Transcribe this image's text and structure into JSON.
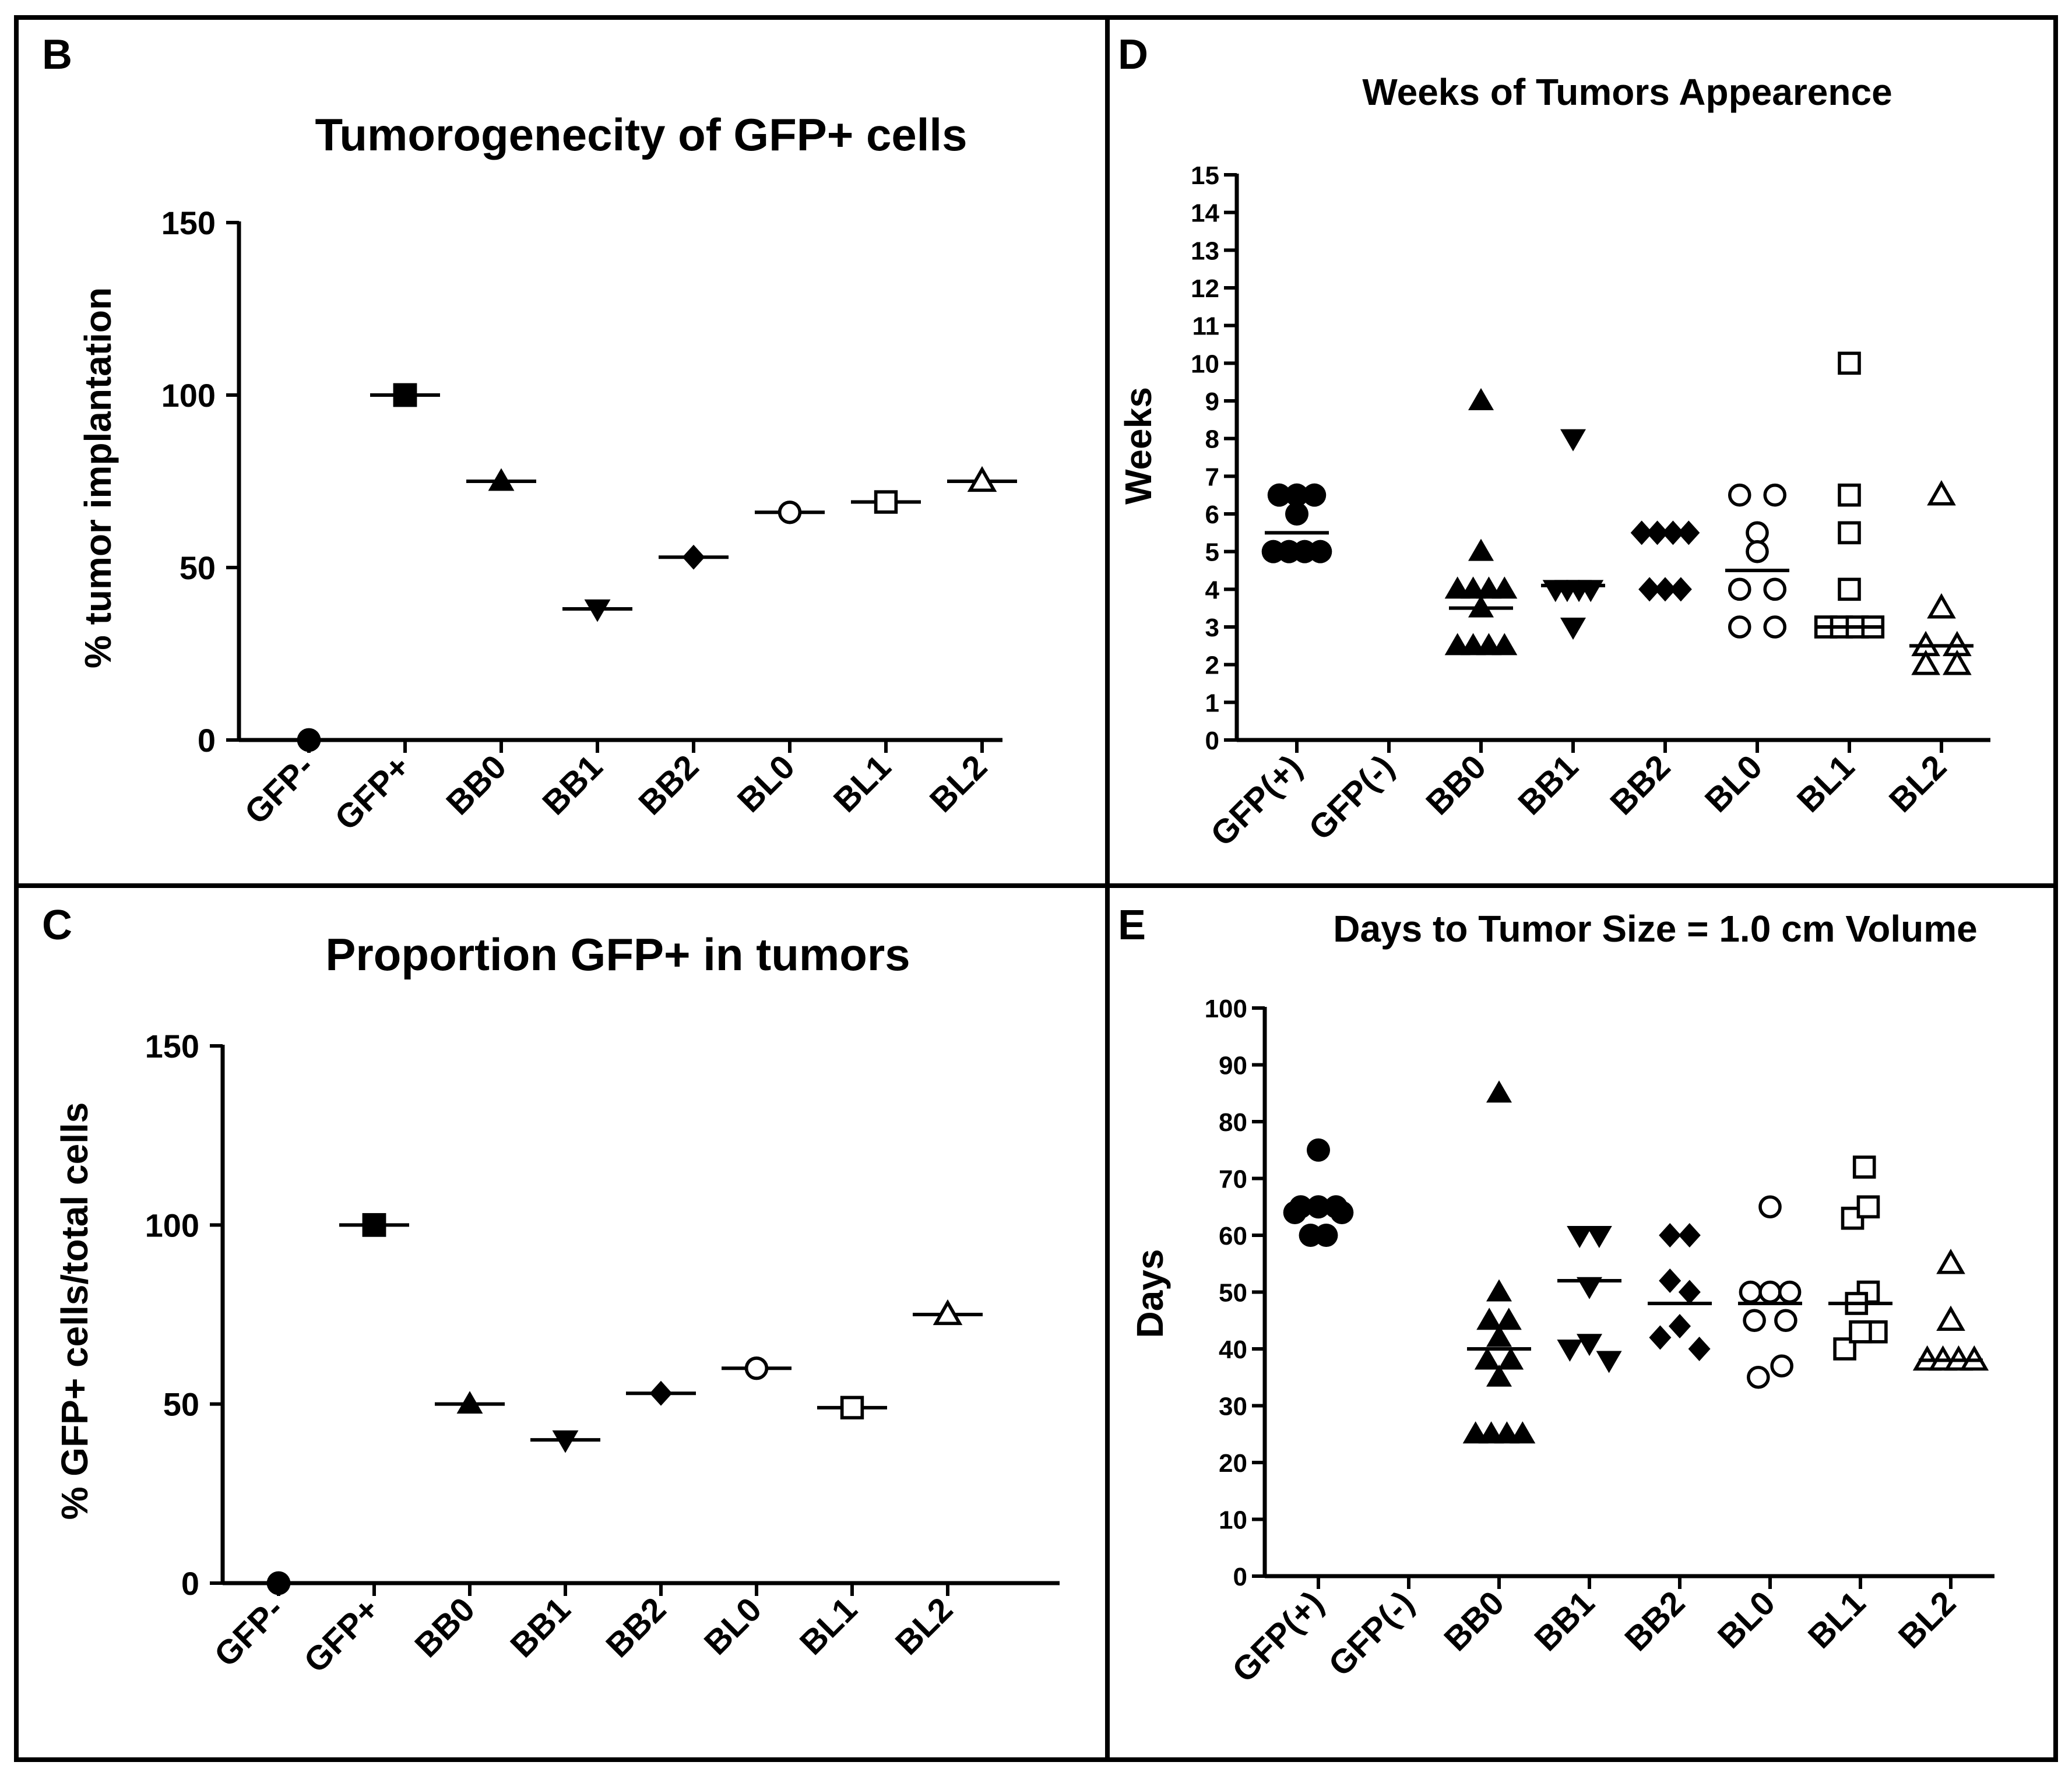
{
  "panels": {
    "B": {
      "letter": "B"
    },
    "C": {
      "letter": "C"
    },
    "D": {
      "letter": "D"
    },
    "E": {
      "letter": "E"
    }
  },
  "chart_data": [
    {
      "id": "B",
      "type": "scatter",
      "title": "Tumorogenecity of GFP+ cells",
      "xlabel": "",
      "ylabel": "% tumor implantation",
      "ylim": [
        0,
        150
      ],
      "yticks": [
        0,
        50,
        100,
        150
      ],
      "categories": [
        "GFP-",
        "GFP+",
        "BB0",
        "BB1",
        "BB2",
        "BL0",
        "BL1",
        "BL2"
      ],
      "markers": [
        "circle",
        "square",
        "triangle",
        "triangle-down",
        "diamond",
        "circle-open",
        "square-open",
        "triangle-open"
      ],
      "values": [
        0,
        100,
        75,
        38,
        53,
        66,
        69,
        75
      ]
    },
    {
      "id": "C",
      "type": "scatter",
      "title": "Proportion GFP+ in tumors",
      "xlabel": "",
      "ylabel": "% GFP+ cells/total cells",
      "ylim": [
        0,
        150
      ],
      "yticks": [
        0,
        50,
        100,
        150
      ],
      "categories": [
        "GFP-",
        "GFP+",
        "BB0",
        "BB1",
        "BB2",
        "BL0",
        "BL1",
        "BL2"
      ],
      "markers": [
        "circle",
        "square",
        "triangle",
        "triangle-down",
        "diamond",
        "circle-open",
        "square-open",
        "triangle-open"
      ],
      "values": [
        0,
        100,
        50,
        40,
        53,
        60,
        49,
        75
      ]
    },
    {
      "id": "D",
      "type": "scatter",
      "title": "Weeks of Tumors Appearence",
      "xlabel": "",
      "ylabel": "Weeks",
      "ylim": [
        0,
        15
      ],
      "yticks": [
        0,
        1,
        2,
        3,
        4,
        5,
        6,
        7,
        8,
        9,
        10,
        11,
        12,
        13,
        14,
        15
      ],
      "categories": [
        "GFP(+)",
        "GFP(-)",
        "BB0",
        "BB1",
        "BB2",
        "BL0",
        "BL1",
        "BL2"
      ],
      "markers": [
        "circle",
        "none",
        "triangle",
        "triangle-down",
        "diamond",
        "circle-open",
        "square-open",
        "triangle-open"
      ],
      "series": [
        {
          "name": "GFP(+)",
          "points": [
            [
              -0.45,
              6.5
            ],
            [
              0.0,
              6.5
            ],
            [
              0.45,
              6.5
            ],
            [
              0.0,
              6.0
            ],
            [
              -0.6,
              5.0
            ],
            [
              -0.2,
              5.0
            ],
            [
              0.2,
              5.0
            ],
            [
              0.6,
              5.0
            ]
          ],
          "mean": 5.5
        },
        {
          "name": "GFP(-)",
          "points": [],
          "mean": null
        },
        {
          "name": "BB0",
          "points": [
            [
              0.0,
              9.0
            ],
            [
              0.0,
              5.0
            ],
            [
              -0.6,
              4.0
            ],
            [
              -0.2,
              4.0
            ],
            [
              0.2,
              4.0
            ],
            [
              0.6,
              4.0
            ],
            [
              0.0,
              3.5
            ],
            [
              -0.6,
              2.5
            ],
            [
              -0.2,
              2.5
            ],
            [
              0.2,
              2.5
            ],
            [
              0.6,
              2.5
            ]
          ],
          "mean": 3.5
        },
        {
          "name": "BB1",
          "points": [
            [
              0.0,
              8.0
            ],
            [
              -0.45,
              4.0
            ],
            [
              -0.15,
              4.0
            ],
            [
              0.15,
              4.0
            ],
            [
              0.45,
              4.0
            ],
            [
              0.0,
              3.0
            ]
          ],
          "mean": 4.1
        },
        {
          "name": "BB2",
          "points": [
            [
              -0.6,
              5.5
            ],
            [
              -0.2,
              5.5
            ],
            [
              0.2,
              5.5
            ],
            [
              0.6,
              5.5
            ],
            [
              -0.4,
              4.0
            ],
            [
              0.0,
              4.0
            ],
            [
              0.4,
              4.0
            ]
          ],
          "mean": 5.5
        },
        {
          "name": "BL0",
          "points": [
            [
              -0.45,
              6.5
            ],
            [
              0.45,
              6.5
            ],
            [
              0.0,
              5.5
            ],
            [
              0.0,
              5.0
            ],
            [
              -0.45,
              4.0
            ],
            [
              0.45,
              4.0
            ],
            [
              -0.45,
              3.0
            ],
            [
              0.45,
              3.0
            ]
          ],
          "mean": 4.5
        },
        {
          "name": "BL1",
          "points": [
            [
              0.0,
              10.0
            ],
            [
              0.0,
              6.5
            ],
            [
              0.0,
              5.5
            ],
            [
              0.0,
              4.0
            ],
            [
              -0.6,
              3.0
            ],
            [
              -0.2,
              3.0
            ],
            [
              0.2,
              3.0
            ],
            [
              0.6,
              3.0
            ]
          ],
          "mean": 3.0
        },
        {
          "name": "BL2",
          "points": [
            [
              0.0,
              6.5
            ],
            [
              0.0,
              3.5
            ],
            [
              -0.4,
              2.5
            ],
            [
              0.4,
              2.5
            ],
            [
              -0.4,
              2.0
            ],
            [
              0.4,
              2.0
            ]
          ],
          "mean": 2.5
        }
      ]
    },
    {
      "id": "E",
      "type": "scatter",
      "title": "Days to Tumor Size = 1.0 cm Volume",
      "xlabel": "",
      "ylabel": "Days",
      "ylim": [
        0,
        100
      ],
      "yticks": [
        0,
        10,
        20,
        30,
        40,
        50,
        60,
        70,
        80,
        90,
        100
      ],
      "categories": [
        "GFP(+)",
        "GFP(-)",
        "BB0",
        "BB1",
        "BB2",
        "BL0",
        "BL1",
        "BL2"
      ],
      "markers": [
        "circle",
        "none",
        "triangle",
        "triangle-down",
        "diamond",
        "circle-open",
        "square-open",
        "triangle-open"
      ],
      "series": [
        {
          "name": "GFP(+)",
          "points": [
            [
              0.0,
              75
            ],
            [
              -0.45,
              65
            ],
            [
              0.0,
              65
            ],
            [
              0.45,
              65
            ],
            [
              -0.6,
              64
            ],
            [
              0.6,
              64
            ],
            [
              -0.2,
              60
            ],
            [
              0.2,
              60
            ]
          ],
          "mean": 64
        },
        {
          "name": "GFP(-)",
          "points": [],
          "mean": null
        },
        {
          "name": "BB0",
          "points": [
            [
              0.0,
              85
            ],
            [
              0.0,
              50
            ],
            [
              -0.25,
              45
            ],
            [
              0.25,
              45
            ],
            [
              0.0,
              42
            ],
            [
              -0.3,
              38
            ],
            [
              0.3,
              38
            ],
            [
              0.0,
              35
            ],
            [
              -0.6,
              25
            ],
            [
              -0.2,
              25
            ],
            [
              0.2,
              25
            ],
            [
              0.6,
              25
            ]
          ],
          "mean": 40
        },
        {
          "name": "BB1",
          "points": [
            [
              -0.25,
              60
            ],
            [
              0.25,
              60
            ],
            [
              0.0,
              51
            ],
            [
              -0.5,
              40
            ],
            [
              0.0,
              41
            ],
            [
              0.5,
              38
            ]
          ],
          "mean": 52
        },
        {
          "name": "BB2",
          "points": [
            [
              -0.25,
              60
            ],
            [
              0.25,
              60
            ],
            [
              -0.25,
              52
            ],
            [
              0.25,
              50
            ],
            [
              -0.5,
              42
            ],
            [
              0.0,
              44
            ],
            [
              0.5,
              40
            ]
          ],
          "mean": 48
        },
        {
          "name": "BL0",
          "points": [
            [
              0.0,
              65
            ],
            [
              -0.5,
              50
            ],
            [
              0.0,
              50
            ],
            [
              0.5,
              50
            ],
            [
              -0.4,
              45
            ],
            [
              0.4,
              45
            ],
            [
              -0.3,
              35
            ],
            [
              0.3,
              37
            ]
          ],
          "mean": 48
        },
        {
          "name": "BL1",
          "points": [
            [
              0.1,
              72
            ],
            [
              -0.2,
              63
            ],
            [
              0.2,
              65
            ],
            [
              0.2,
              50
            ],
            [
              -0.1,
              48
            ],
            [
              -0.4,
              40
            ],
            [
              0.4,
              43
            ],
            [
              0.0,
              43
            ]
          ],
          "mean": 48
        },
        {
          "name": "BL2",
          "points": [
            [
              0.0,
              55
            ],
            [
              0.0,
              45
            ],
            [
              -0.6,
              38
            ],
            [
              -0.2,
              38
            ],
            [
              0.2,
              38
            ],
            [
              0.6,
              38
            ]
          ],
          "mean": 38
        }
      ]
    }
  ]
}
